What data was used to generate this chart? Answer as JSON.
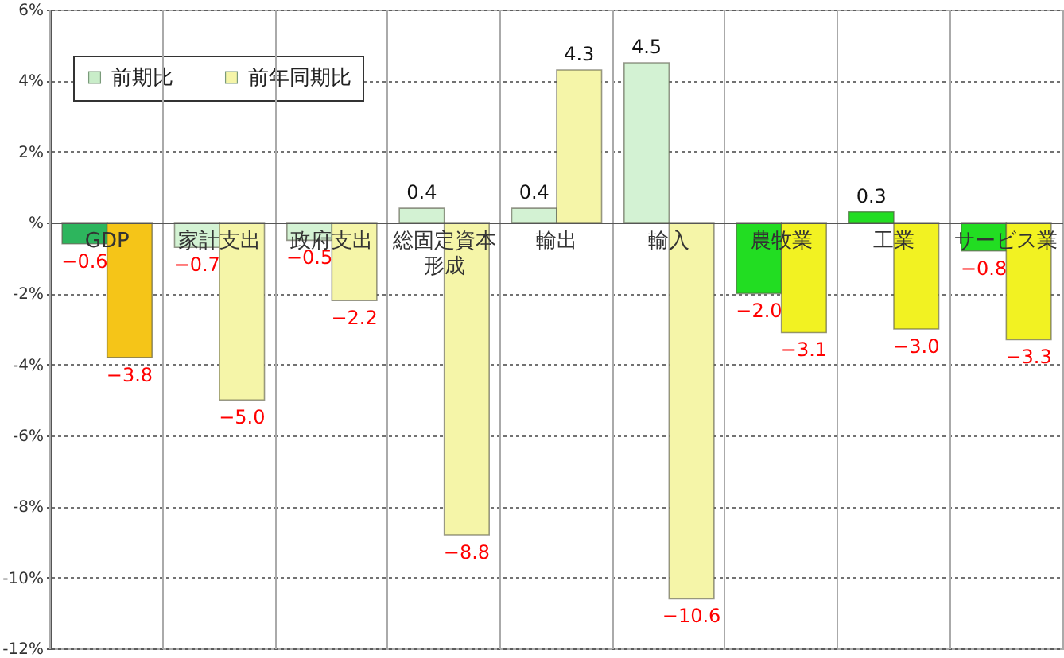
{
  "chart_data": {
    "type": "bar",
    "categories": [
      "GDP",
      "家計支出",
      "政府支出",
      "総固定資本形成",
      "輸出",
      "輸入",
      "農牧業",
      "工業",
      "サービス業"
    ],
    "series": [
      {
        "name": "前期比",
        "color": "#c9edc9",
        "colors": [
          "#2db55d",
          "#d3f2d3",
          "#d3f2d3",
          "#d3f2d3",
          "#d3f2d3",
          "#d3f2d3",
          "#22dd22",
          "#22dd22",
          "#22dd22"
        ],
        "values": [
          -0.6,
          -0.7,
          -0.5,
          0.4,
          0.4,
          4.5,
          -2.0,
          0.3,
          -0.8
        ],
        "value_labels": [
          "−0.6",
          "−0.7",
          "−0.5",
          "0.4",
          "0.4",
          "4.5",
          "−2.0",
          "0.3",
          "−0.8"
        ]
      },
      {
        "name": "前年同期比",
        "color": "#f5f5a8",
        "colors": [
          "#f5c518",
          "#f5f5a8",
          "#f5f5a8",
          "#f5f5a8",
          "#f5f5a8",
          "#f5f5a8",
          "#f2f222",
          "#f2f222",
          "#f2f222"
        ],
        "values": [
          -3.8,
          -5.0,
          -2.2,
          -8.8,
          4.3,
          -10.6,
          -3.1,
          -3.0,
          -3.3
        ],
        "value_labels": [
          "−3.8",
          "−5.0",
          "−2.2",
          "−8.8",
          "4.3",
          "−10.6",
          "−3.1",
          "−3.0",
          "−3.3"
        ]
      }
    ],
    "ylim": [
      -12,
      6
    ],
    "yticks": [
      {
        "value": -12,
        "label": "-12%"
      },
      {
        "value": -10,
        "label": "-10%"
      },
      {
        "value": -8,
        "label": "-8%"
      },
      {
        "value": -6,
        "label": "-6%"
      },
      {
        "value": -4,
        "label": "-4%"
      },
      {
        "value": -2,
        "label": "-2%"
      },
      {
        "value": 0,
        "label": "%"
      },
      {
        "value": 2,
        "label": "2%"
      },
      {
        "value": 4,
        "label": "4%"
      },
      {
        "value": 6,
        "label": "6%"
      }
    ],
    "grid": true,
    "legend": "top left"
  }
}
